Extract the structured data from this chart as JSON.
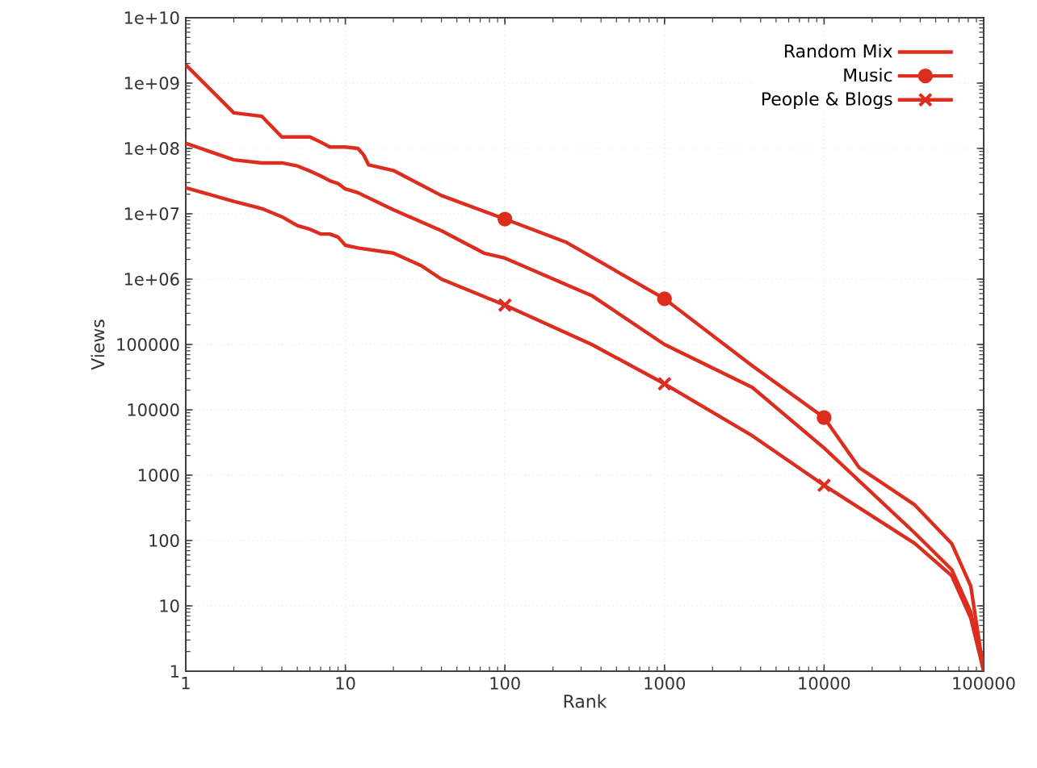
{
  "chart_data": {
    "type": "line",
    "xlabel": "Rank",
    "ylabel": "Views",
    "log": "xy",
    "grid": true,
    "legend": "top right",
    "line_style": "solid",
    "xlim": [
      1,
      100000
    ],
    "ylim": [
      1,
      10000000000
    ],
    "xticks": [
      1,
      10,
      100,
      1000,
      10000,
      100000
    ],
    "yticks": [
      1,
      10,
      100,
      1000,
      10000,
      100000,
      {
        "value": 1000000,
        "label": "1e+06"
      },
      {
        "value": 10000000,
        "label": "1e+07"
      },
      {
        "value": 100000000,
        "label": "1e+08"
      },
      {
        "value": 1000000000,
        "label": "1e+09"
      },
      {
        "value": 10000000000,
        "label": "1e+10"
      }
    ],
    "series": [
      {
        "name": "Random Mix",
        "color": "#dc2d1e",
        "x": [
          1,
          2,
          3,
          4,
          5,
          6,
          7,
          8,
          9,
          10,
          12,
          20,
          40,
          74,
          100,
          350,
          1000,
          3550,
          10000,
          37000,
          63000,
          83000,
          100000
        ],
        "values": [
          120000000,
          67000000,
          60000000,
          60000000,
          54000000,
          45000000,
          38000000,
          32000000,
          29000000,
          24000000,
          21000000,
          11500000,
          5500000,
          2500000,
          2100000,
          560000,
          100000,
          22000,
          2600,
          130,
          36,
          8,
          1
        ]
      },
      {
        "name": "Music",
        "color": "#dc2d1e",
        "x": [
          1,
          2,
          3,
          4,
          5,
          6,
          7,
          8,
          10,
          12,
          13,
          14,
          20,
          40,
          100,
          240,
          1000,
          3550,
          10000,
          16600,
          37000,
          63000,
          83000,
          100000
        ],
        "values": [
          1900000000,
          350000000,
          310000000,
          150000000,
          150000000,
          150000000,
          125000000,
          105000000,
          105000000,
          100000000,
          80000000,
          56000000,
          46000000,
          19000000,
          8300000,
          3700000,
          500000,
          47000,
          7600,
          1300,
          350,
          90,
          20,
          1
        ]
      },
      {
        "type": "scatter",
        "marker": "circle",
        "color": "#dc2d1e",
        "x": [
          100,
          1000,
          10000
        ],
        "values": [
          8300000,
          500000,
          7600
        ]
      },
      {
        "name": "People & Blogs",
        "color": "#dc2d1e",
        "x": [
          1,
          2,
          3,
          4,
          5,
          6,
          7,
          8,
          9,
          10,
          12,
          20,
          30,
          40,
          100,
          350,
          1000,
          3550,
          10000,
          37000,
          63000,
          83000,
          100000
        ],
        "values": [
          25000000,
          15500000,
          12000000,
          9000000,
          6600000,
          5800000,
          4900000,
          4900000,
          4400000,
          3300000,
          3000000,
          2500000,
          1600000,
          1000000,
          400000,
          100000,
          25000,
          4000,
          700,
          90,
          29,
          6.5,
          1
        ]
      },
      {
        "type": "scatter",
        "marker": "cross",
        "color": "#dc2d1e",
        "x": [
          100,
          1000,
          10000
        ],
        "values": [
          400000,
          25000,
          700
        ]
      }
    ]
  }
}
